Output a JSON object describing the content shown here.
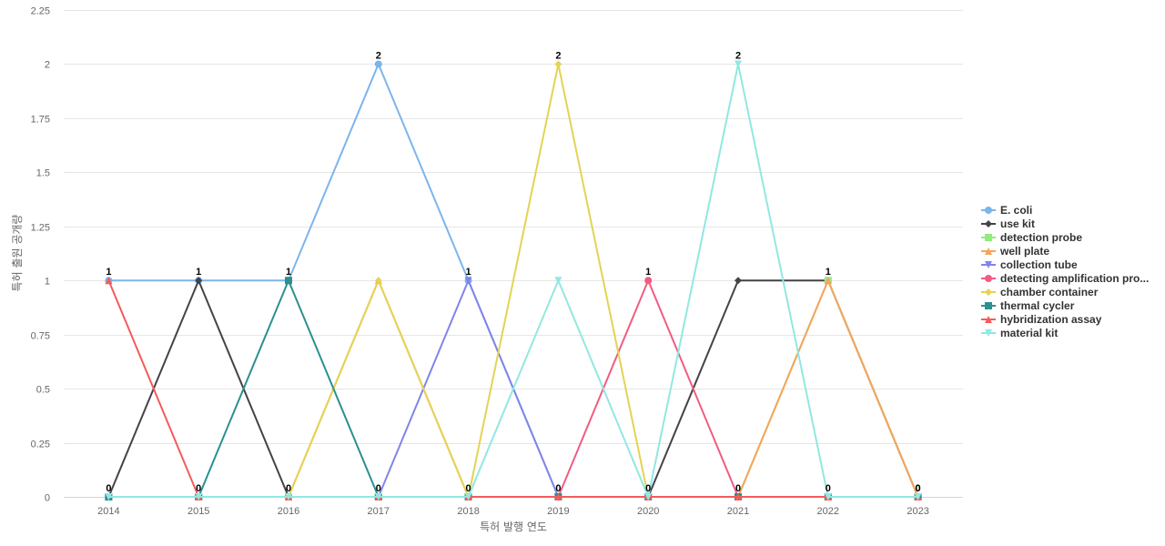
{
  "chart_data": {
    "type": "line",
    "x": [
      "2014",
      "2015",
      "2016",
      "2017",
      "2018",
      "2019",
      "2020",
      "2021",
      "2022",
      "2023"
    ],
    "xlabel": "특허 발행 연도",
    "ylabel": "특허 출원 공개량",
    "ylim": [
      0,
      2.25
    ],
    "yticks": [
      "0",
      "0.25",
      "0.5",
      "0.75",
      "1",
      "1.25",
      "1.5",
      "1.75",
      "2",
      "2.25"
    ],
    "grid": "horizontal",
    "legend_position": "right",
    "top_labels": [
      "1",
      "1",
      "1",
      "2",
      "1",
      "2",
      "1",
      "2",
      "1",
      "0"
    ],
    "bottom_labels": [
      "0",
      "0",
      "0",
      "0",
      "0",
      "0",
      "0",
      "0",
      "0",
      "0"
    ],
    "series": [
      {
        "name": "E. coli",
        "color": "#7cb5ec",
        "marker": "circle",
        "values": [
          1,
          1,
          1,
          2,
          1,
          0,
          0,
          0,
          0,
          0
        ]
      },
      {
        "name": "use kit",
        "color": "#434348",
        "marker": "diamond",
        "values": [
          0,
          1,
          0,
          0,
          0,
          0,
          0,
          1,
          1,
          0
        ]
      },
      {
        "name": "detection probe",
        "color": "#90ed7d",
        "marker": "square",
        "values": [
          0,
          0,
          0,
          0,
          0,
          0,
          0,
          0,
          1,
          0
        ]
      },
      {
        "name": "well plate",
        "color": "#f7a35c",
        "marker": "triangle",
        "values": [
          0,
          0,
          0,
          1,
          0,
          0,
          0,
          0,
          1,
          0
        ]
      },
      {
        "name": "collection tube",
        "color": "#8085e9",
        "marker": "triangle-down",
        "values": [
          0,
          0,
          0,
          0,
          1,
          0,
          0,
          0,
          0,
          0
        ]
      },
      {
        "name": "detecting amplification pro...",
        "color": "#f15c80",
        "marker": "circle",
        "values": [
          0,
          0,
          0,
          0,
          0,
          0,
          1,
          0,
          0,
          0
        ]
      },
      {
        "name": "chamber container",
        "color": "#e4d354",
        "marker": "diamond",
        "values": [
          0,
          0,
          0,
          1,
          0,
          2,
          0,
          0,
          0,
          0
        ]
      },
      {
        "name": "thermal cycler",
        "color": "#2b908f",
        "marker": "square",
        "values": [
          0,
          0,
          1,
          0,
          0,
          0,
          0,
          0,
          0,
          0
        ]
      },
      {
        "name": "hybridization assay",
        "color": "#f45b5b",
        "marker": "triangle",
        "values": [
          1,
          0,
          0,
          0,
          0,
          0,
          0,
          0,
          0,
          0
        ]
      },
      {
        "name": "material kit",
        "color": "#91e8e1",
        "marker": "triangle-down",
        "values": [
          0,
          0,
          0,
          0,
          0,
          1,
          0,
          2,
          0,
          0
        ]
      }
    ]
  }
}
